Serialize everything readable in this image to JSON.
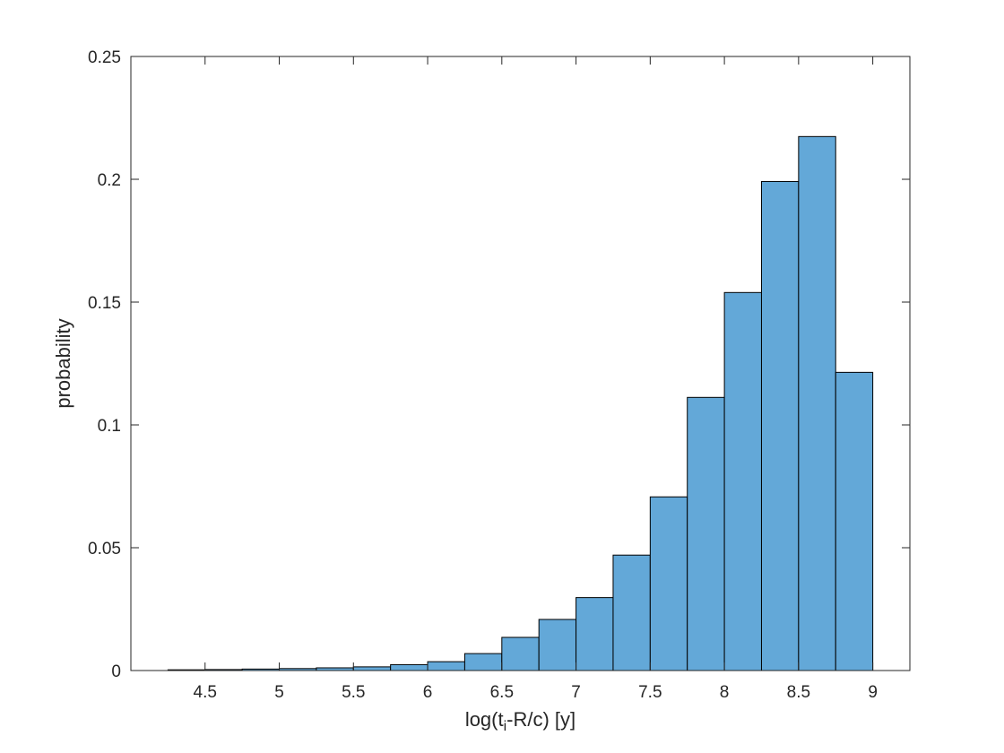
{
  "chart_data": {
    "type": "bar",
    "histogram": true,
    "bin_edges": [
      4.25,
      4.5,
      4.75,
      5.0,
      5.25,
      5.5,
      5.75,
      6.0,
      6.25,
      6.5,
      6.75,
      7.0,
      7.25,
      7.5,
      7.75,
      8.0,
      8.25,
      8.5,
      8.75,
      9.0
    ],
    "values": [
      0.0003,
      0.0004,
      0.0006,
      0.0008,
      0.0011,
      0.0015,
      0.0024,
      0.0036,
      0.0069,
      0.0135,
      0.0208,
      0.0297,
      0.047,
      0.0707,
      0.1112,
      0.1539,
      0.1991,
      0.2174,
      0.1214
    ],
    "title": "",
    "xlabel_main": "log(t",
    "xlabel_sub": "i",
    "xlabel_rest": "-R/c) [y]",
    "ylabel": "probability",
    "xlim": [
      4.0,
      9.25
    ],
    "ylim": [
      0,
      0.25
    ],
    "xticks": [
      4.5,
      5,
      5.5,
      6,
      6.5,
      7,
      7.5,
      8,
      8.5,
      9
    ],
    "xtick_labels": [
      "4.5",
      "5",
      "5.5",
      "6",
      "6.5",
      "7",
      "7.5",
      "8",
      "8.5",
      "9"
    ],
    "yticks": [
      0,
      0.05,
      0.1,
      0.15,
      0.2,
      0.25
    ],
    "ytick_labels": [
      "0",
      "0.05",
      "0.1",
      "0.15",
      "0.2",
      "0.25"
    ],
    "grid": false,
    "bar_color": "#63a8d8",
    "edge_color": "#000000"
  }
}
